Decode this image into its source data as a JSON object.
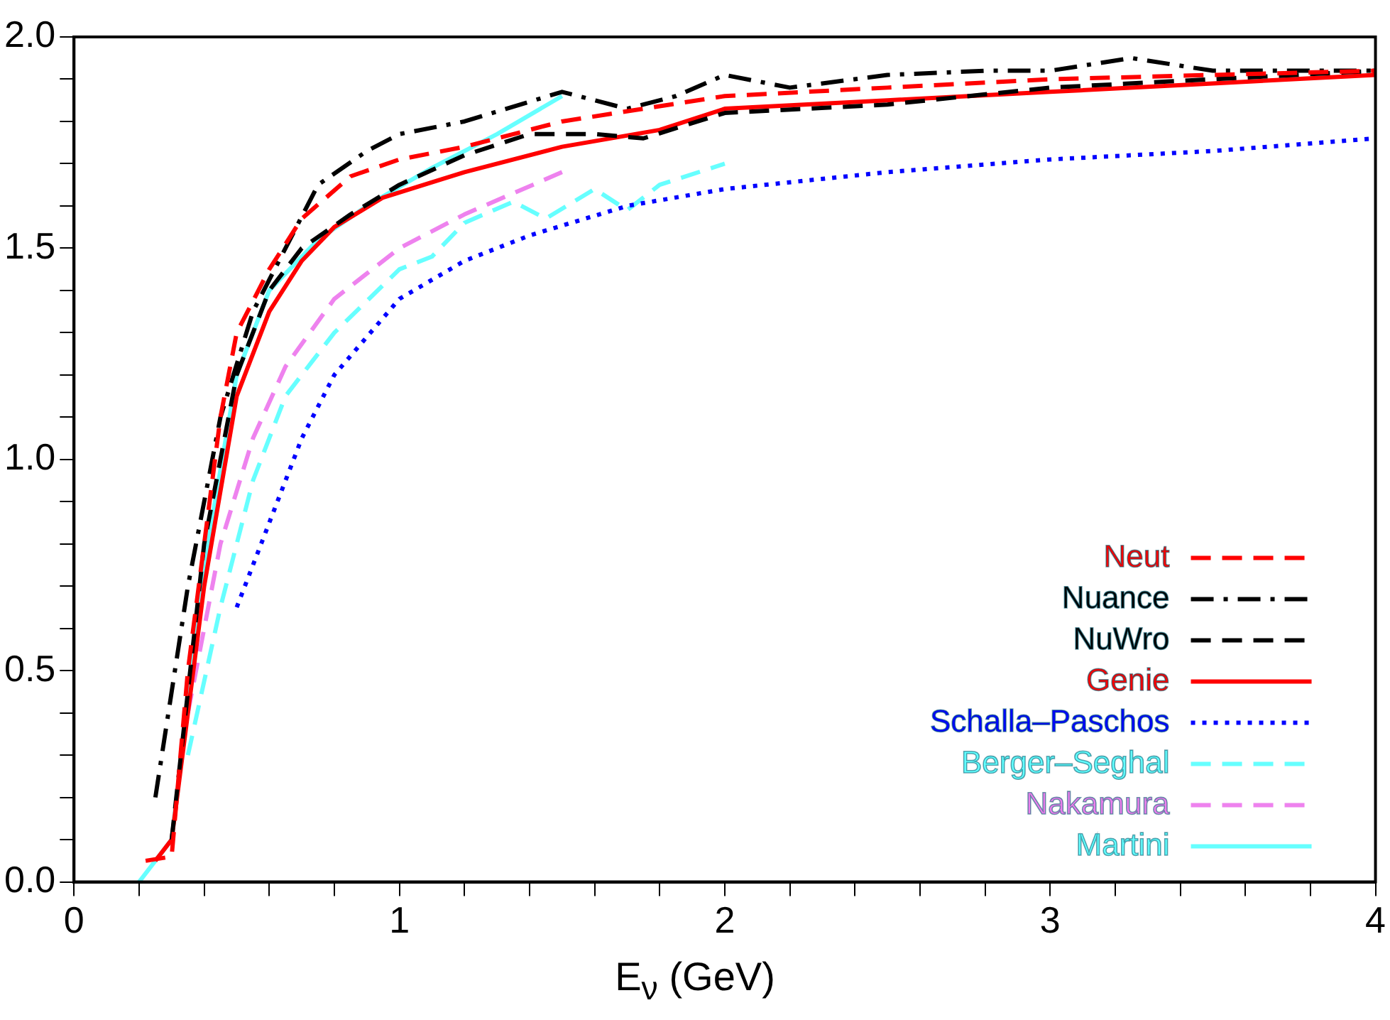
{
  "chart_data": {
    "type": "line",
    "xlabel": "E$_{ν}$ (GeV)",
    "xlim": [
      0,
      4
    ],
    "ylim": [
      0,
      2
    ],
    "xticks": [
      0,
      {
        "value": 0.2,
        "label": null
      },
      {
        "value": 0.4,
        "label": null
      },
      {
        "value": 0.6,
        "label": null
      },
      {
        "value": 0.8,
        "label": null
      },
      1,
      {
        "value": 1.2,
        "label": null
      },
      {
        "value": 1.4,
        "label": null
      },
      {
        "value": 1.6,
        "label": null
      },
      {
        "value": 1.8,
        "label": null
      },
      2,
      {
        "value": 2.2,
        "label": null
      },
      {
        "value": 2.4,
        "label": null
      },
      {
        "value": 2.6,
        "label": null
      },
      {
        "value": 2.8,
        "label": null
      },
      3,
      {
        "value": 3.2,
        "label": null
      },
      {
        "value": 3.4,
        "label": null
      },
      {
        "value": 3.6,
        "label": null
      },
      {
        "value": 3.8,
        "label": null
      },
      4
    ],
    "yticks": [
      {
        "value": 0,
        "label": "0.0"
      },
      {
        "value": 0.1,
        "label": null
      },
      {
        "value": 0.2,
        "label": null
      },
      {
        "value": 0.3,
        "label": null
      },
      {
        "value": 0.4,
        "label": null
      },
      {
        "value": 0.5,
        "label": "0.5"
      },
      {
        "value": 0.6,
        "label": null
      },
      {
        "value": 0.7,
        "label": null
      },
      {
        "value": 0.8,
        "label": null
      },
      {
        "value": 0.9,
        "label": null
      },
      {
        "value": 1,
        "label": "1.0"
      },
      {
        "value": 1.1,
        "label": null
      },
      {
        "value": 1.2,
        "label": null
      },
      {
        "value": 1.3,
        "label": null
      },
      {
        "value": 1.4,
        "label": null
      },
      {
        "value": 1.5,
        "label": "1.5"
      },
      {
        "value": 1.6,
        "label": null
      },
      {
        "value": 1.7,
        "label": null
      },
      {
        "value": 1.8,
        "label": null
      },
      {
        "value": 1.9,
        "label": null
      },
      {
        "value": 2,
        "label": "2.0"
      }
    ],
    "grid": false,
    "legend": "bottom right",
    "marker": "none",
    "series": [
      {
        "name": "Neut",
        "color": "#ff0000",
        "line_style": "dashed",
        "x": [
          0.22,
          0.3,
          0.35,
          0.45,
          0.5,
          0.6,
          0.7,
          0.85,
          1.0,
          1.2,
          1.5,
          2.0,
          2.5,
          3.0,
          4.0
        ],
        "values": [
          0.05,
          0.06,
          0.5,
          1.1,
          1.3,
          1.45,
          1.57,
          1.67,
          1.71,
          1.74,
          1.8,
          1.86,
          1.88,
          1.9,
          1.92
        ]
      },
      {
        "name": "Nuance",
        "color": "#000000",
        "line_style": "dashdot",
        "x": [
          0.25,
          0.35,
          0.45,
          0.55,
          0.65,
          0.75,
          0.9,
          1.0,
          1.2,
          1.5,
          1.7,
          1.85,
          2.0,
          2.2,
          2.5,
          2.8,
          3.0,
          3.25,
          3.5,
          4.0
        ],
        "values": [
          0.2,
          0.7,
          1.1,
          1.35,
          1.5,
          1.65,
          1.73,
          1.77,
          1.8,
          1.87,
          1.83,
          1.86,
          1.91,
          1.88,
          1.91,
          1.92,
          1.92,
          1.95,
          1.92,
          1.92
        ]
      },
      {
        "name": "NuWro",
        "color": "#000000",
        "line_style": "dashed",
        "x": [
          0.3,
          0.4,
          0.5,
          0.6,
          0.7,
          0.85,
          1.0,
          1.2,
          1.4,
          1.6,
          1.75,
          2.0,
          2.5,
          3.0,
          3.5,
          4.0
        ],
        "values": [
          0.1,
          0.8,
          1.2,
          1.4,
          1.5,
          1.58,
          1.65,
          1.72,
          1.77,
          1.77,
          1.76,
          1.82,
          1.84,
          1.88,
          1.9,
          1.92
        ]
      },
      {
        "name": "Genie",
        "color": "#ff0000",
        "line_style": "solid",
        "x": [
          0.25,
          0.3,
          0.4,
          0.5,
          0.6,
          0.7,
          0.8,
          0.95,
          1.2,
          1.5,
          1.8,
          2.0,
          2.5,
          3.0,
          3.5,
          4.0
        ],
        "values": [
          0.05,
          0.1,
          0.7,
          1.15,
          1.35,
          1.47,
          1.55,
          1.62,
          1.68,
          1.74,
          1.78,
          1.83,
          1.85,
          1.87,
          1.89,
          1.91
        ]
      },
      {
        "name": "Schalla–Paschos",
        "color": "#0000ff",
        "line_style": "dotted",
        "x": [
          0.5,
          0.6,
          0.7,
          0.8,
          1.0,
          1.2,
          1.4,
          1.7,
          2.0,
          2.5,
          3.0,
          3.5,
          4.0
        ],
        "values": [
          0.65,
          0.85,
          1.05,
          1.2,
          1.38,
          1.47,
          1.53,
          1.6,
          1.64,
          1.68,
          1.71,
          1.73,
          1.76
        ]
      },
      {
        "name": "Berger–Seghal",
        "color": "#66ffff",
        "line_style": "dashed",
        "x": [
          0.35,
          0.45,
          0.55,
          0.65,
          0.8,
          1.0,
          1.1,
          1.2,
          1.35,
          1.45,
          1.6,
          1.7,
          1.8,
          2.0
        ],
        "values": [
          0.3,
          0.65,
          0.95,
          1.15,
          1.3,
          1.45,
          1.48,
          1.56,
          1.61,
          1.57,
          1.64,
          1.59,
          1.65,
          1.7
        ]
      },
      {
        "name": "Nakamura",
        "color": "#ee82ee",
        "line_style": "dashed",
        "x": [
          0.35,
          0.45,
          0.55,
          0.65,
          0.8,
          1.0,
          1.2,
          1.5
        ],
        "values": [
          0.4,
          0.8,
          1.05,
          1.22,
          1.38,
          1.5,
          1.58,
          1.68
        ]
      },
      {
        "name": "Martini",
        "color": "#66ffff",
        "line_style": "solid",
        "x": [
          0.2,
          0.3,
          0.4,
          0.5,
          0.6,
          0.75,
          0.9,
          1.1,
          1.3,
          1.5
        ],
        "values": [
          0.0,
          0.1,
          0.75,
          1.2,
          1.4,
          1.52,
          1.6,
          1.69,
          1.77,
          1.86
        ]
      }
    ]
  }
}
